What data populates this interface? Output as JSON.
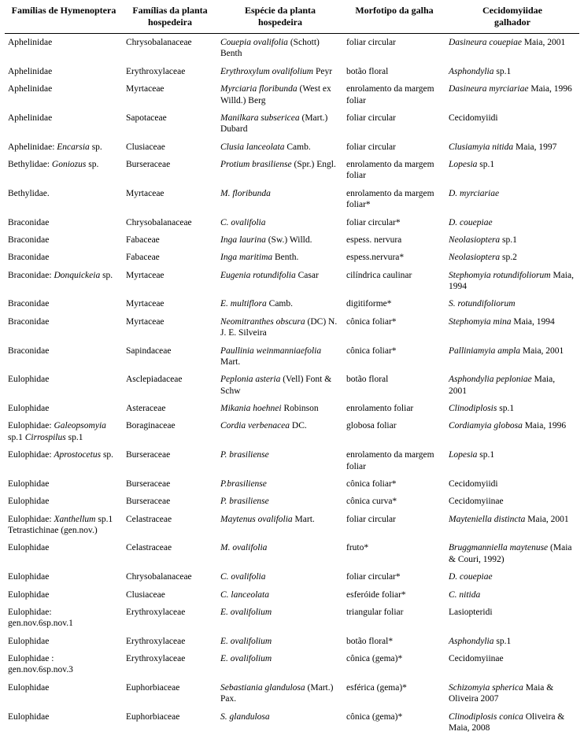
{
  "headers": [
    {
      "line1": "Famílias de Hymenoptera",
      "line2": ""
    },
    {
      "line1": "Famílias da planta",
      "line2": "hospedeira"
    },
    {
      "line1": "Espécie da planta",
      "line2": "hospedeira"
    },
    {
      "line1": "Morfotipo da galha",
      "line2": ""
    },
    {
      "line1": "Cecidomyiidae",
      "line2": "galhador"
    }
  ],
  "rows": [
    {
      "hym": [
        {
          "t": "Aphelinidae"
        }
      ],
      "pfam": "Chrysobalanaceae",
      "psp": [
        {
          "t": "Couepia ovalifolia",
          "i": true
        },
        {
          "t": " (Schott) Benth"
        }
      ],
      "morf": "foliar circular",
      "cec": [
        {
          "t": "Dasineura couepiae",
          "i": true
        },
        {
          "t": " Maia, 2001"
        }
      ]
    },
    {
      "hym": [
        {
          "t": "Aphelinidae"
        }
      ],
      "pfam": "Erythroxylaceae",
      "psp": [
        {
          "t": "Erythroxylum ovalifolium",
          "i": true
        },
        {
          "t": " Peyr"
        }
      ],
      "morf": "botão floral",
      "cec": [
        {
          "t": "Asphondylia",
          "i": true
        },
        {
          "t": " sp.1"
        }
      ]
    },
    {
      "hym": [
        {
          "t": "Aphelinidae"
        }
      ],
      "pfam": "Myrtaceae",
      "psp": [
        {
          "t": "Myrciaria floribunda",
          "i": true
        },
        {
          "t": " (West ex Willd.) Berg"
        }
      ],
      "morf": "enrolamento da margem foliar",
      "cec": [
        {
          "t": "Dasineura myrciariae",
          "i": true
        },
        {
          "t": " Maia, 1996"
        }
      ]
    },
    {
      "hym": [
        {
          "t": "Aphelinidae"
        }
      ],
      "pfam": "Sapotaceae",
      "psp": [
        {
          "t": "Manilkara subsericea",
          "i": true
        },
        {
          "t": " (Mart.) Dubard"
        }
      ],
      "morf": "foliar circular",
      "cec": [
        {
          "t": "Cecidomyiidi"
        }
      ]
    },
    {
      "hym": [
        {
          "t": "Aphelinidae: "
        },
        {
          "t": "Encarsia",
          "i": true
        },
        {
          "t": " sp."
        }
      ],
      "pfam": "Clusiaceae",
      "psp": [
        {
          "t": "Clusia lanceolata",
          "i": true
        },
        {
          "t": " Camb."
        }
      ],
      "morf": "foliar circular",
      "cec": [
        {
          "t": "Clusiamyia nitida",
          "i": true
        },
        {
          "t": " Maia, 1997"
        }
      ]
    },
    {
      "hym": [
        {
          "t": "Bethylidae: "
        },
        {
          "t": "Goniozus",
          "i": true
        },
        {
          "t": " sp."
        }
      ],
      "pfam": "Burseraceae",
      "psp": [
        {
          "t": "Protium brasiliense",
          "i": true
        },
        {
          "t": " (Spr.) Engl."
        }
      ],
      "morf": "enrolamento da margem foliar",
      "cec": [
        {
          "t": "Lopesia",
          "i": true
        },
        {
          "t": " sp.1"
        }
      ]
    },
    {
      "hym": [
        {
          "t": "Bethylidae."
        }
      ],
      "pfam": "Myrtaceae",
      "psp": [
        {
          "t": "M. floribunda",
          "i": true
        }
      ],
      "morf": "enrolamento da margem foliar*",
      "cec": [
        {
          "t": "D. myrciariae",
          "i": true
        }
      ]
    },
    {
      "hym": [
        {
          "t": "Braconidae"
        }
      ],
      "pfam": "Chrysobalanaceae",
      "psp": [
        {
          "t": "C. ovalifolia",
          "i": true
        }
      ],
      "morf": "foliar circular*",
      "cec": [
        {
          "t": "D. couepiae",
          "i": true
        }
      ]
    },
    {
      "hym": [
        {
          "t": "Braconidae"
        }
      ],
      "pfam": "Fabaceae",
      "psp": [
        {
          "t": "Inga laurina",
          "i": true
        },
        {
          "t": " (Sw.) Willd."
        }
      ],
      "morf": "espess. nervura",
      "cec": [
        {
          "t": "Neolasioptera",
          "i": true
        },
        {
          "t": " sp.1"
        }
      ]
    },
    {
      "hym": [
        {
          "t": "Braconidae"
        }
      ],
      "pfam": "Fabaceae",
      "psp": [
        {
          "t": "Inga maritima",
          "i": true
        },
        {
          "t": " Benth."
        }
      ],
      "morf": "espess.nervura*",
      "cec": [
        {
          "t": "Neolasioptera",
          "i": true
        },
        {
          "t": " sp.2"
        }
      ]
    },
    {
      "hym": [
        {
          "t": "Braconidae: "
        },
        {
          "t": "Donquickeia",
          "i": true
        },
        {
          "t": " sp."
        }
      ],
      "pfam": "Myrtaceae",
      "psp": [
        {
          "t": "Eugenia rotundifolia",
          "i": true
        },
        {
          "t": " Casar"
        }
      ],
      "morf": "cilíndrica caulinar",
      "cec": [
        {
          "t": "Stephomyia rotundifoliorum",
          "i": true
        },
        {
          "t": " Maia, 1994"
        }
      ]
    },
    {
      "hym": [
        {
          "t": "Braconidae"
        }
      ],
      "pfam": "Myrtaceae",
      "psp": [
        {
          "t": "E. multiflora",
          "i": true
        },
        {
          "t": " Camb."
        }
      ],
      "morf": "digitiforme*",
      "cec": [
        {
          "t": "S. rotundifoliorum",
          "i": true
        }
      ]
    },
    {
      "hym": [
        {
          "t": "Braconidae"
        }
      ],
      "pfam": "Myrtaceae",
      "psp": [
        {
          "t": "Neomitranthes obscura",
          "i": true
        },
        {
          "t": " (DC) N. J. E. Silveira"
        }
      ],
      "morf": "cônica foliar*",
      "cec": [
        {
          "t": "Stephomyia mina",
          "i": true
        },
        {
          "t": " Maia, 1994"
        }
      ]
    },
    {
      "hym": [
        {
          "t": "Braconidae"
        }
      ],
      "pfam": "Sapindaceae",
      "psp": [
        {
          "t": "Paullinia weinmanniaefolia",
          "i": true
        },
        {
          "t": " Mart."
        }
      ],
      "morf": "cônica foliar*",
      "cec": [
        {
          "t": "Palliniamyia ampla",
          "i": true
        },
        {
          "t": " Maia, 2001"
        }
      ]
    },
    {
      "hym": [
        {
          "t": "Eulophidae"
        }
      ],
      "pfam": "Asclepiadaceae",
      "psp": [
        {
          "t": "Peplonia asteria",
          "i": true
        },
        {
          "t": " (Vell) Font & Schw"
        }
      ],
      "morf": "botão floral",
      "cec": [
        {
          "t": "Asphondylia peploniae",
          "i": true
        },
        {
          "t": " Maia, 2001"
        }
      ]
    },
    {
      "hym": [
        {
          "t": "Eulophidae"
        }
      ],
      "pfam": "Asteraceae",
      "psp": [
        {
          "t": "Mikania hoehnei",
          "i": true
        },
        {
          "t": " Robinson"
        }
      ],
      "morf": "enrolamento foliar",
      "cec": [
        {
          "t": "Clinodiplosis",
          "i": true
        },
        {
          "t": " sp.1"
        }
      ]
    },
    {
      "hym": [
        {
          "t": "Eulophidae: "
        },
        {
          "t": "Galeopsomyia",
          "i": true
        },
        {
          "t": " sp.1 "
        },
        {
          "t": "Cirrospilus",
          "i": true
        },
        {
          "t": " sp.1"
        }
      ],
      "pfam": "Boraginaceae",
      "psp": [
        {
          "t": "Cordia verbenacea",
          "i": true
        },
        {
          "t": " DC."
        }
      ],
      "morf": "globosa foliar",
      "cec": [
        {
          "t": "Cordiamyia globosa",
          "i": true
        },
        {
          "t": " Maia, 1996"
        }
      ]
    },
    {
      "hym": [
        {
          "t": "Eulophidae: "
        },
        {
          "t": "Aprostocetus",
          "i": true
        },
        {
          "t": " sp."
        }
      ],
      "pfam": "Burseraceae",
      "psp": [
        {
          "t": "P. brasiliense",
          "i": true
        }
      ],
      "morf": "enrolamento da margem foliar",
      "cec": [
        {
          "t": "Lopesia",
          "i": true
        },
        {
          "t": " sp.1"
        }
      ]
    },
    {
      "hym": [
        {
          "t": "Eulophidae"
        }
      ],
      "pfam": "Burseraceae",
      "psp": [
        {
          "t": "P.brasiliense",
          "i": true
        }
      ],
      "morf": "cônica foliar*",
      "cec": [
        {
          "t": "Cecidomyiidi"
        }
      ]
    },
    {
      "hym": [
        {
          "t": "Eulophidae"
        }
      ],
      "pfam": "Burseraceae",
      "psp": [
        {
          "t": "P. brasiliense",
          "i": true
        }
      ],
      "morf": "cônica curva*",
      "cec": [
        {
          "t": "Cecidomyiinae"
        }
      ]
    },
    {
      "hym": [
        {
          "t": "Eulophidae: "
        },
        {
          "t": "Xanthellum",
          "i": true
        },
        {
          "t": " sp.1 Tetrastichinae (gen.nov.)"
        }
      ],
      "pfam": "Celastraceae",
      "psp": [
        {
          "t": "Maytenus ovalifolia",
          "i": true
        },
        {
          "t": " Mart."
        }
      ],
      "morf": "foliar circular",
      "cec": [
        {
          "t": "Mayteniella distincta",
          "i": true
        },
        {
          "t": " Maia, 2001"
        }
      ]
    },
    {
      "hym": [
        {
          "t": "Eulophidae"
        }
      ],
      "pfam": "Celastraceae",
      "psp": [
        {
          "t": "M. ovalifolia",
          "i": true
        }
      ],
      "morf": "fruto*",
      "cec": [
        {
          "t": "Bruggmanniella maytenuse",
          "i": true
        },
        {
          "t": " (Maia & Couri, 1992)"
        }
      ]
    },
    {
      "hym": [
        {
          "t": "Eulophidae"
        }
      ],
      "pfam": "Chrysobalanaceae",
      "psp": [
        {
          "t": "C. ovalifolia",
          "i": true
        }
      ],
      "morf": "foliar circular*",
      "cec": [
        {
          "t": "D. couepiae",
          "i": true
        }
      ]
    },
    {
      "hym": [
        {
          "t": "Eulophidae"
        }
      ],
      "pfam": "Clusiaceae",
      "psp": [
        {
          "t": "C. lanceolata",
          "i": true
        }
      ],
      "morf": "esferóide foliar*",
      "cec": [
        {
          "t": "C. nitida",
          "i": true
        }
      ]
    },
    {
      "hym": [
        {
          "t": "Eulophidae: gen.nov.6sp.nov.1"
        }
      ],
      "pfam": "Erythroxylaceae",
      "psp": [
        {
          "t": "E. ovalifolium",
          "i": true
        }
      ],
      "morf": "triangular foliar",
      "cec": [
        {
          "t": "Lasiopteridi"
        }
      ]
    },
    {
      "hym": [
        {
          "t": "Eulophidae"
        }
      ],
      "pfam": "Erythroxylaceae",
      "psp": [
        {
          "t": "E. ovalifolium",
          "i": true
        }
      ],
      "morf": "botão floral*",
      "cec": [
        {
          "t": "Asphondylia",
          "i": true
        },
        {
          "t": " sp.1"
        }
      ]
    },
    {
      "hym": [
        {
          "t": "Eulophidae : gen.nov.6sp.nov.3"
        }
      ],
      "pfam": "Erythroxylaceae",
      "psp": [
        {
          "t": "E. ovalifolium",
          "i": true
        }
      ],
      "morf": "cônica (gema)*",
      "cec": [
        {
          "t": "Cecidomyiinae"
        }
      ]
    },
    {
      "hym": [
        {
          "t": "Eulophidae"
        }
      ],
      "pfam": "Euphorbiaceae",
      "psp": [
        {
          "t": "Sebastiania glandulosa",
          "i": true
        },
        {
          "t": " (Mart.) Pax."
        }
      ],
      "morf": "esférica (gema)*",
      "cec": [
        {
          "t": "Schizomyia spherica",
          "i": true
        },
        {
          "t": " Maia & Oliveira 2007"
        }
      ]
    },
    {
      "hym": [
        {
          "t": "Eulophidae"
        }
      ],
      "pfam": "Euphorbiaceae",
      "psp": [
        {
          "t": "S. glandulosa",
          "i": true
        }
      ],
      "morf": "cônica (gema)*",
      "cec": [
        {
          "t": "Clinodiplosis conica",
          "i": true
        },
        {
          "t": " Oliveira & Maia, 2008"
        }
      ]
    }
  ]
}
